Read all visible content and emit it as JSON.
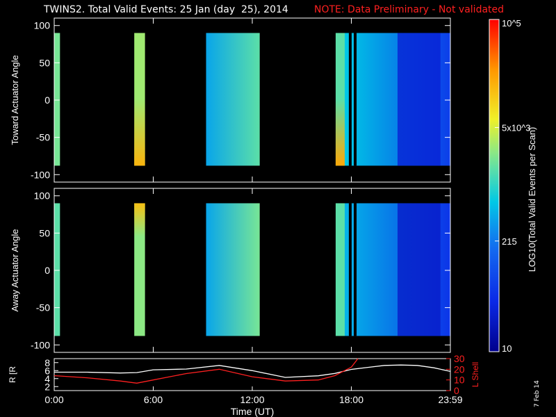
{
  "header": {
    "title": "TWINS2. Total Valid Events: 25 Jan (day  25), 2014",
    "note": "NOTE: Data Preliminary - Not validated",
    "date_stamp": "7 Feb 14"
  },
  "colors": {
    "note": "#ff2020",
    "lshell": "#ff2020",
    "radius": "#ffffff",
    "axes": "#ffffff",
    "background": "#000000"
  },
  "chart_data": [
    {
      "type": "heatmap",
      "panel": "top",
      "ylabel": "Toward Actuator Angle",
      "ylim": [
        -110,
        110
      ],
      "yticks": [
        100,
        50,
        0,
        -50,
        -100
      ],
      "data_ylim": [
        -88,
        90
      ],
      "x_range_hours": [
        0,
        24
      ],
      "blocks": [
        {
          "t": [
            0.0,
            0.35
          ],
          "level": 0.58
        },
        {
          "t": [
            4.85,
            5.5
          ],
          "level": 0.62,
          "low_end_level": 0.8
        },
        {
          "t": [
            9.2,
            12.45
          ],
          "level_start": 0.4,
          "level_end": 0.55
        },
        {
          "t": [
            17.05,
            17.6
          ],
          "level": 0.55,
          "low_end_level": 0.82
        },
        {
          "t": [
            17.6,
            24.0
          ],
          "level_start": 0.45,
          "level_end": 0.2,
          "low_region": [
            20.8,
            23.4
          ],
          "low_level": 0.12
        }
      ]
    },
    {
      "type": "heatmap",
      "panel": "middle",
      "ylabel": "Away Actuator Angle",
      "ylim": [
        -110,
        110
      ],
      "yticks": [
        100,
        50,
        0,
        -50,
        -100
      ],
      "data_ylim": [
        -88,
        90
      ],
      "x_range_hours": [
        0,
        24
      ],
      "blocks": [
        {
          "t": [
            0.0,
            0.35
          ],
          "level": 0.55
        },
        {
          "t": [
            4.85,
            5.5
          ],
          "level": 0.6,
          "high_end_level": 0.78
        },
        {
          "t": [
            9.2,
            12.45
          ],
          "level_start": 0.4,
          "level_end": 0.58
        },
        {
          "t": [
            17.05,
            17.6
          ],
          "level": 0.55
        },
        {
          "t": [
            17.6,
            24.0
          ],
          "level_start": 0.42,
          "level_end": 0.18,
          "low_region": [
            20.8,
            23.4
          ],
          "low_level": 0.1
        }
      ]
    },
    {
      "type": "line",
      "panel": "bottom",
      "xlabel": "Time (UT)",
      "xticks": [
        "0:00",
        "6:00",
        "12:00",
        "18:00",
        "23:59"
      ],
      "ylabel_left": "R [R_E]",
      "ylim_left": [
        1,
        9
      ],
      "yticks_left": [
        2,
        4,
        6,
        8
      ],
      "ylabel_right": "L Shell",
      "ylim_right": [
        0,
        30
      ],
      "yticks_right": [
        0,
        10,
        20,
        30
      ],
      "series": [
        {
          "name": "R",
          "axis": "left",
          "x": [
            0,
            2,
            4,
            5,
            6,
            8,
            10,
            12,
            14,
            16,
            17,
            18,
            19,
            20,
            21,
            22,
            23,
            24
          ],
          "y": [
            5.6,
            5.6,
            5.4,
            5.5,
            6.2,
            6.4,
            7.3,
            6.0,
            4.3,
            4.7,
            5.3,
            6.3,
            6.8,
            7.3,
            7.4,
            7.3,
            6.7,
            5.8
          ]
        },
        {
          "name": "L Shell",
          "axis": "right",
          "x": [
            0,
            2,
            4,
            5,
            6,
            8,
            10,
            12,
            14,
            16,
            17,
            18,
            18.4
          ],
          "y": [
            14,
            12,
            9,
            7,
            10,
            16,
            20,
            13,
            9,
            10,
            14,
            22,
            30
          ]
        }
      ]
    },
    {
      "type": "colorbar",
      "label": "LOG10(Total Valid Events per Scan)",
      "scale": "log",
      "range": [
        10,
        100000
      ],
      "tick_labels": [
        "10",
        "215",
        "5x10^3",
        "10^5"
      ]
    }
  ]
}
